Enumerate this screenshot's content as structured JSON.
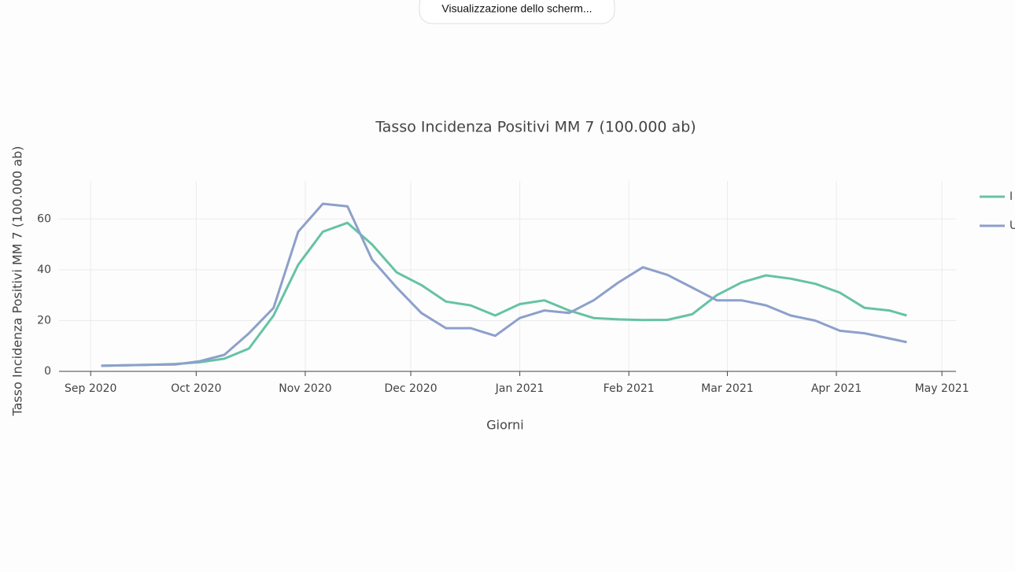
{
  "ui": {
    "button": "Visualizzazione dello scherm..."
  },
  "chart_data": {
    "type": "line",
    "title": "Tasso Incidenza Positivi MM 7 (100.000 ab)",
    "x_label": "Giorni",
    "y_label": "Tasso Incidenza Positivi MM 7 (100.000 ab)",
    "x": [
      "2020-09-04",
      "2020-09-11",
      "2020-09-18",
      "2020-09-25",
      "2020-10-02",
      "2020-10-09",
      "2020-10-16",
      "2020-10-23",
      "2020-10-30",
      "2020-11-06",
      "2020-11-13",
      "2020-11-20",
      "2020-11-27",
      "2020-12-04",
      "2020-12-11",
      "2020-12-18",
      "2020-12-25",
      "2021-01-01",
      "2021-01-08",
      "2021-01-15",
      "2021-01-22",
      "2021-01-29",
      "2021-02-05",
      "2021-02-12",
      "2021-02-19",
      "2021-02-26",
      "2021-03-05",
      "2021-03-12",
      "2021-03-19",
      "2021-03-26",
      "2021-04-02",
      "2021-04-09",
      "2021-04-16",
      "2021-04-21"
    ],
    "series": [
      {
        "name": "I",
        "color": "#66c2a5",
        "values": [
          2.2,
          2.4,
          2.6,
          2.9,
          3.6,
          5,
          9,
          22,
          42,
          55,
          58.5,
          50,
          39,
          34,
          27.5,
          26,
          22,
          26.5,
          28,
          24,
          21,
          20.5,
          20.2,
          20.3,
          22.5,
          30,
          35,
          37.8,
          36.5,
          34.5,
          31,
          25,
          24,
          22
        ]
      },
      {
        "name": "U",
        "color": "#8da0cb",
        "values": [
          2.2,
          2.4,
          2.6,
          2.7,
          4,
          6.5,
          15,
          25,
          55,
          66,
          65,
          44,
          33,
          23,
          17,
          17,
          14,
          21,
          24,
          23,
          28,
          35,
          41,
          38,
          33,
          28,
          28,
          26,
          22,
          20,
          16,
          15,
          13,
          11.5
        ]
      }
    ],
    "xlim": [
      "2020-08-23",
      "2021-05-05"
    ],
    "xticks": [
      {
        "value": "2020-09-01",
        "label": "Sep 2020"
      },
      {
        "value": "2020-10-01",
        "label": "Oct 2020"
      },
      {
        "value": "2020-11-01",
        "label": "Nov 2020"
      },
      {
        "value": "2020-12-01",
        "label": "Dec 2020"
      },
      {
        "value": "2021-01-01",
        "label": "Jan 2021"
      },
      {
        "value": "2021-02-01",
        "label": "Feb 2021"
      },
      {
        "value": "2021-03-01",
        "label": "Mar 2021"
      },
      {
        "value": "2021-04-01",
        "label": "Apr 2021"
      },
      {
        "value": "2021-05-01",
        "label": "May 2021"
      }
    ],
    "ylim": [
      0,
      75
    ],
    "yticks": [
      0,
      20,
      40,
      60
    ],
    "grid": true
  }
}
